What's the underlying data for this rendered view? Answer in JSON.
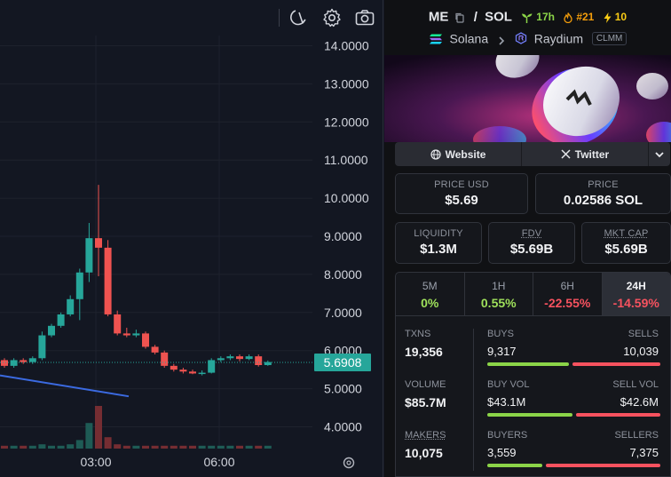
{
  "chart": {
    "price_ticks": [
      "14.0000",
      "13.0000",
      "12.0000",
      "11.0000",
      "10.0000",
      "9.0000",
      "8.0000",
      "7.0000",
      "6.0000",
      "5.0000",
      "4.0000"
    ],
    "time_ticks": [
      "03:00",
      "06:00"
    ],
    "current_price": "5.6908",
    "up_color": "#26a69a",
    "down_color": "#ef5350",
    "candles": [
      {
        "o": 5.75,
        "c": 5.6,
        "h": 5.8,
        "l": 5.55
      },
      {
        "o": 5.6,
        "c": 5.75,
        "h": 5.8,
        "l": 5.55
      },
      {
        "o": 5.75,
        "c": 5.7,
        "h": 5.8,
        "l": 5.65
      },
      {
        "o": 5.7,
        "c": 5.8,
        "h": 5.85,
        "l": 5.65
      },
      {
        "o": 5.8,
        "c": 6.4,
        "h": 6.5,
        "l": 5.75
      },
      {
        "o": 6.4,
        "c": 6.65,
        "h": 6.7,
        "l": 6.35
      },
      {
        "o": 6.65,
        "c": 6.95,
        "h": 7.0,
        "l": 6.6
      },
      {
        "o": 6.95,
        "c": 7.35,
        "h": 7.45,
        "l": 6.9
      },
      {
        "o": 7.35,
        "c": 8.05,
        "h": 8.15,
        "l": 6.8
      },
      {
        "o": 8.05,
        "c": 8.95,
        "h": 9.35,
        "l": 7.8
      },
      {
        "o": 8.95,
        "c": 8.7,
        "h": 10.35,
        "l": 7.95
      },
      {
        "o": 8.7,
        "c": 6.95,
        "h": 8.9,
        "l": 6.9
      },
      {
        "o": 6.95,
        "c": 6.45,
        "h": 7.05,
        "l": 6.4
      },
      {
        "o": 6.45,
        "c": 6.4,
        "h": 6.6,
        "l": 6.35
      },
      {
        "o": 6.4,
        "c": 6.45,
        "h": 6.55,
        "l": 6.35
      },
      {
        "o": 6.45,
        "c": 6.1,
        "h": 6.5,
        "l": 6.05
      },
      {
        "o": 6.1,
        "c": 5.95,
        "h": 6.15,
        "l": 5.9
      },
      {
        "o": 5.95,
        "c": 5.6,
        "h": 6.0,
        "l": 5.55
      },
      {
        "o": 5.6,
        "c": 5.5,
        "h": 5.65,
        "l": 5.45
      },
      {
        "o": 5.5,
        "c": 5.45,
        "h": 5.55,
        "l": 5.4
      },
      {
        "o": 5.45,
        "c": 5.4,
        "h": 5.5,
        "l": 5.38
      },
      {
        "o": 5.4,
        "c": 5.42,
        "h": 5.48,
        "l": 5.35
      },
      {
        "o": 5.42,
        "c": 5.75,
        "h": 5.8,
        "l": 5.4
      },
      {
        "o": 5.75,
        "c": 5.8,
        "h": 5.85,
        "l": 5.7
      },
      {
        "o": 5.8,
        "c": 5.85,
        "h": 5.9,
        "l": 5.75
      },
      {
        "o": 5.85,
        "c": 5.78,
        "h": 5.9,
        "l": 5.72
      },
      {
        "o": 5.78,
        "c": 5.85,
        "h": 5.9,
        "l": 5.75
      },
      {
        "o": 5.85,
        "c": 5.62,
        "h": 5.9,
        "l": 5.58
      },
      {
        "o": 5.62,
        "c": 5.7,
        "h": 5.74,
        "l": 5.6
      }
    ],
    "volumes": [
      0.02,
      0.02,
      0.02,
      0.02,
      0.03,
      0.02,
      0.02,
      0.03,
      0.06,
      0.18,
      0.3,
      0.08,
      0.03,
      0.02,
      0.02,
      0.02,
      0.02,
      0.02,
      0.02,
      0.02,
      0.02,
      0.02,
      0.02,
      0.02,
      0.02,
      0.02,
      0.02,
      0.02,
      0.02
    ],
    "trend_line": {
      "from": 5.35,
      "to": 4.8
    }
  },
  "header": {
    "base": "ME",
    "separator": "/",
    "quote": "SOL",
    "age": "17h",
    "rank": "#21",
    "boosts": "10",
    "chain": "Solana",
    "dex": "Raydium",
    "pool_type": "CLMM"
  },
  "links": {
    "website": "Website",
    "twitter": "Twitter"
  },
  "stats": {
    "price_usd_label": "PRICE USD",
    "price_usd": "$5.69",
    "price_label": "PRICE",
    "price": "0.02586 SOL",
    "liquidity_label": "LIQUIDITY",
    "liquidity": "$1.3M",
    "fdv_label": "FDV",
    "fdv": "$5.69B",
    "mktcap_label": "MKT CAP",
    "mktcap": "$5.69B"
  },
  "timeframes": [
    {
      "label": "5M",
      "value": "0%",
      "tone": "pos"
    },
    {
      "label": "1H",
      "value": "0.55%",
      "tone": "pos"
    },
    {
      "label": "6H",
      "value": "-22.55%",
      "tone": "neg"
    },
    {
      "label": "24H",
      "value": "-14.59%",
      "tone": "neg"
    }
  ],
  "txns": {
    "txns_label": "TXNS",
    "txns": "19,356",
    "buys_label": "BUYS",
    "buys": "9,317",
    "sells_label": "SELLS",
    "sells": "10,039",
    "buys_ratio": 0.481,
    "volume_label": "VOLUME",
    "volume": "$85.7M",
    "buy_vol_label": "BUY VOL",
    "buy_vol": "$43.1M",
    "sell_vol_label": "SELL VOL",
    "sell_vol": "$42.6M",
    "buy_vol_ratio": 0.503,
    "makers_label": "MAKERS",
    "makers": "10,075",
    "buyers_label": "BUYERS",
    "buyers": "3,559",
    "sellers_label": "SELLERS",
    "sellers": "7,375",
    "buyers_ratio": 0.326
  }
}
